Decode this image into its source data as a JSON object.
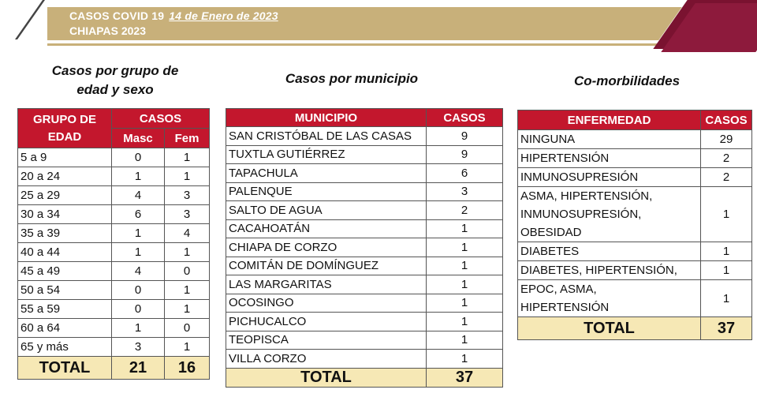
{
  "header": {
    "title": "CASOS COVID 19",
    "date": "14 de Enero de 2023",
    "subtitle": "CHIAPAS 2023"
  },
  "age_section": {
    "title_line1": "Casos por grupo de",
    "title_line2": "edad y sexo",
    "col_group_line1": "GRUPO DE",
    "col_group_line2": "EDAD",
    "col_cases": "CASOS",
    "col_male": "Masc",
    "col_female": "Fem",
    "rows": [
      {
        "group": "5 a 9",
        "m": "0",
        "f": "1"
      },
      {
        "group": "20 a 24",
        "m": "1",
        "f": "1"
      },
      {
        "group": "25 a 29",
        "m": "4",
        "f": "3"
      },
      {
        "group": "30 a 34",
        "m": "6",
        "f": "3"
      },
      {
        "group": "35 a 39",
        "m": "1",
        "f": "4"
      },
      {
        "group": "40 a 44",
        "m": "1",
        "f": "1"
      },
      {
        "group": "45 a 49",
        "m": "4",
        "f": "0"
      },
      {
        "group": "50 a 54",
        "m": "0",
        "f": "1"
      },
      {
        "group": "55 a 59",
        "m": "0",
        "f": "1"
      },
      {
        "group": "60 a 64",
        "m": "1",
        "f": "0"
      },
      {
        "group": "65 y más",
        "m": "3",
        "f": "1"
      }
    ],
    "total_label": "TOTAL",
    "total_m": "21",
    "total_f": "16"
  },
  "mun_section": {
    "title": "Casos por municipio",
    "col_mun": "MUNICIPIO",
    "col_cases": "CASOS",
    "rows": [
      {
        "name": "SAN CRISTÓBAL DE LAS CASAS",
        "cases": "9"
      },
      {
        "name": "TUXTLA GUTIÉRREZ",
        "cases": "9"
      },
      {
        "name": "TAPACHULA",
        "cases": "6"
      },
      {
        "name": "PALENQUE",
        "cases": "3"
      },
      {
        "name": "SALTO DE AGUA",
        "cases": "2"
      },
      {
        "name": "CACAHOATÁN",
        "cases": "1"
      },
      {
        "name": "CHIAPA DE CORZO",
        "cases": "1"
      },
      {
        "name": "COMITÁN DE DOMÍNGUEZ",
        "cases": "1"
      },
      {
        "name": "LAS MARGARITAS",
        "cases": "1"
      },
      {
        "name": "OCOSINGO",
        "cases": "1"
      },
      {
        "name": "PICHUCALCO",
        "cases": "1"
      },
      {
        "name": "TEOPISCA",
        "cases": "1"
      },
      {
        "name": "VILLA CORZO",
        "cases": "1"
      }
    ],
    "total_label": "TOTAL",
    "total": "37"
  },
  "com_section": {
    "title": "Co-morbilidades",
    "col_disease": "ENFERMEDAD",
    "col_cases": "CASOS",
    "rows": [
      {
        "lines": [
          "NINGUNA"
        ],
        "cases": "29"
      },
      {
        "lines": [
          "HIPERTENSIÓN"
        ],
        "cases": "2"
      },
      {
        "lines": [
          "INMUNOSUPRESIÓN"
        ],
        "cases": "2"
      },
      {
        "lines": [
          "ASMA, HIPERTENSIÓN,",
          "INMUNOSUPRESIÓN,",
          "OBESIDAD"
        ],
        "cases": "1"
      },
      {
        "lines": [
          "DIABETES"
        ],
        "cases": "1"
      },
      {
        "lines": [
          "DIABETES, HIPERTENSIÓN,"
        ],
        "cases": "1"
      },
      {
        "lines": [
          "EPOC, ASMA,",
          "HIPERTENSIÓN"
        ],
        "cases": "1"
      }
    ],
    "total_label": "TOTAL",
    "total": "37"
  }
}
